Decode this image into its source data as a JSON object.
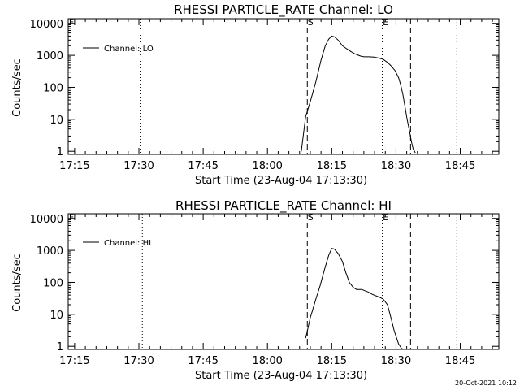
{
  "chart_data": [
    {
      "type": "line",
      "title": "RHESSI PARTICLE_RATE Channel: LO",
      "xlabel": "Start Time (23-Aug-04 17:13:30)",
      "ylabel": "Counts/sec",
      "x_tick_labels": [
        "17:15",
        "17:30",
        "17:45",
        "18:00",
        "18:15",
        "18:30",
        "18:45"
      ],
      "x_ticks_min": [
        15,
        30,
        45,
        60,
        75,
        90,
        105
      ],
      "y_tick_labels": [
        "1",
        "10",
        "100",
        "1000",
        "10000"
      ],
      "y_ticks": [
        1,
        10,
        100,
        1000,
        10000
      ],
      "xlim_min": [
        13.5,
        114
      ],
      "ylim": [
        0.8,
        14000
      ],
      "yscale": "log",
      "legend": "top-left",
      "series": [
        {
          "name": "Channel: LO",
          "x_min": [
            67.9,
            68.9,
            70.1,
            71.3,
            72.5,
            73.5,
            74.3,
            75.0,
            75.6,
            76.5,
            77.5,
            78.5,
            79.5,
            80.5,
            81.7,
            82.5,
            83.7,
            84.9,
            86.0,
            87.0,
            88.0,
            88.8,
            89.8,
            90.6,
            91.1,
            91.6,
            92.1,
            92.6,
            93.2,
            93.6,
            94.0,
            94.5
          ],
          "y": [
            1,
            12,
            40,
            150,
            700,
            2000,
            3200,
            4000,
            3800,
            3000,
            2000,
            1600,
            1300,
            1100,
            950,
            900,
            900,
            880,
            820,
            750,
            600,
            480,
            330,
            200,
            120,
            60,
            25,
            10,
            4,
            2,
            1.2,
            0.9
          ]
        }
      ],
      "markers": [
        {
          "label": "F",
          "x_min": 13.5,
          "style": "dotted"
        },
        {
          "label": "",
          "x_min": 30.3,
          "style": "dotted"
        },
        {
          "label": "S",
          "x_min": 69.3,
          "style": "dashed"
        },
        {
          "label": "E",
          "x_min": 86.8,
          "style": "dotted"
        },
        {
          "label": "",
          "x_min": 93.4,
          "style": "dashed"
        },
        {
          "label": "",
          "x_min": 104.2,
          "style": "dotted"
        }
      ]
    },
    {
      "type": "line",
      "title": "RHESSI PARTICLE_RATE Channel: HI",
      "xlabel": "Start Time (23-Aug-04 17:13:30)",
      "ylabel": "Counts/sec",
      "x_tick_labels": [
        "17:15",
        "17:30",
        "17:45",
        "18:00",
        "18:15",
        "18:30",
        "18:45"
      ],
      "x_ticks_min": [
        15,
        30,
        45,
        60,
        75,
        90,
        105
      ],
      "y_tick_labels": [
        "1",
        "10",
        "100",
        "1000",
        "10000"
      ],
      "y_ticks": [
        1,
        10,
        100,
        1000,
        10000
      ],
      "xlim_min": [
        13.5,
        114
      ],
      "ylim": [
        0.8,
        14000
      ],
      "yscale": "log",
      "legend": "top-left",
      "series": [
        {
          "name": "Channel: HI",
          "x_min": [
            68.9,
            69.3,
            70.0,
            70.5,
            71.3,
            72.3,
            73.3,
            74.3,
            75.0,
            75.6,
            76.5,
            77.5,
            78.3,
            79.1,
            80.0,
            80.8,
            82.0,
            82.7,
            83.5,
            84.5,
            85.3,
            86.0,
            87.0,
            88.0,
            88.8,
            89.6,
            90.6,
            91.3,
            92.0
          ],
          "y": [
            1.8,
            3,
            8,
            13,
            30,
            80,
            250,
            700,
            1150,
            1100,
            800,
            450,
            200,
            100,
            70,
            60,
            60,
            55,
            50,
            42,
            38,
            35,
            30,
            20,
            8,
            3,
            1.2,
            0.85,
            0.8
          ]
        }
      ],
      "markers": [
        {
          "label": "F",
          "x_min": 13.5,
          "style": "dotted"
        },
        {
          "label": "",
          "x_min": 30.8,
          "style": "dotted"
        },
        {
          "label": "S",
          "x_min": 69.3,
          "style": "dashed"
        },
        {
          "label": "E",
          "x_min": 86.8,
          "style": "dotted"
        },
        {
          "label": "",
          "x_min": 93.4,
          "style": "dashed"
        },
        {
          "label": "",
          "x_min": 104.2,
          "style": "dotted"
        }
      ]
    }
  ],
  "footer": {
    "timestamp": "20-Oct-2021 10:12"
  }
}
